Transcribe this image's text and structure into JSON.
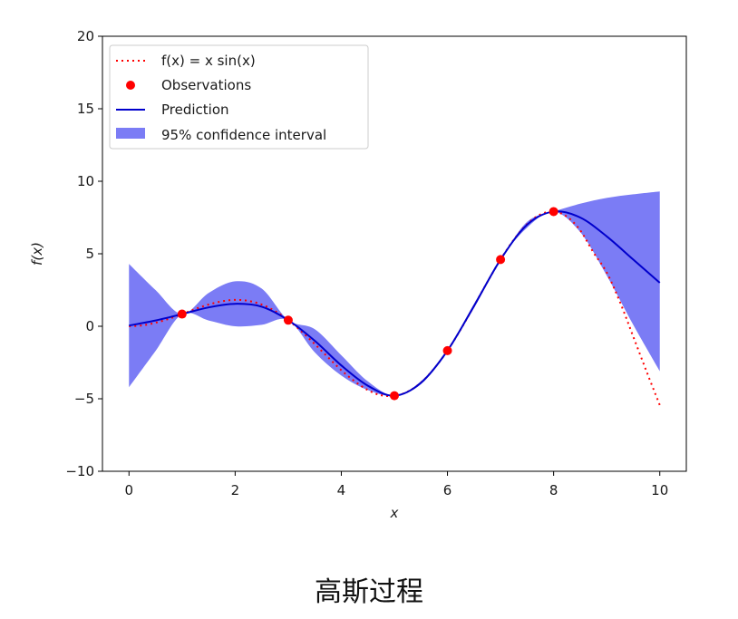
{
  "chart_data": {
    "type": "line",
    "xlabel": "x",
    "ylabel": "f(x)",
    "xlim": [
      -0.5,
      10.5
    ],
    "ylim": [
      -10,
      20
    ],
    "xticks": [
      0,
      2,
      4,
      6,
      8,
      10
    ],
    "yticks": [
      -10,
      -5,
      0,
      5,
      10,
      15,
      20
    ],
    "legend_position": "top-left",
    "series": [
      {
        "name": "f(x) = x sin(x)",
        "kind": "line",
        "style": "dotted",
        "color": "#ff0000",
        "x": [
          0,
          0.25,
          0.5,
          0.75,
          1,
          1.25,
          1.5,
          1.75,
          2,
          2.25,
          2.5,
          2.75,
          3,
          3.25,
          3.5,
          3.75,
          4,
          4.25,
          4.5,
          4.75,
          5,
          5.25,
          5.5,
          5.75,
          6,
          6.25,
          6.5,
          6.75,
          7,
          7.25,
          7.5,
          7.75,
          8,
          8.25,
          8.5,
          8.75,
          9,
          9.25,
          9.5,
          9.75,
          10
        ],
        "y": [
          0,
          0.06,
          0.24,
          0.51,
          0.84,
          1.19,
          1.5,
          1.72,
          1.82,
          1.75,
          1.5,
          1.05,
          0.42,
          -0.35,
          -1.23,
          -2.14,
          -3.03,
          -3.79,
          -4.4,
          -4.76,
          -4.79,
          -4.51,
          -3.88,
          -2.91,
          -1.68,
          -0.21,
          1.4,
          3.04,
          4.6,
          5.97,
          7.04,
          7.71,
          7.91,
          7.56,
          6.62,
          5.09,
          3.71,
          1.67,
          -0.71,
          -3.11,
          -5.44
        ]
      },
      {
        "name": "Observations",
        "kind": "scatter",
        "color": "#ff0000",
        "x": [
          1,
          3,
          5,
          6,
          7,
          8
        ],
        "y": [
          0.84,
          0.42,
          -4.79,
          -1.68,
          4.6,
          7.91
        ]
      },
      {
        "name": "Prediction",
        "kind": "line",
        "style": "solid",
        "color": "#0000cc",
        "x": [
          0,
          0.5,
          1,
          1.5,
          2,
          2.5,
          3,
          3.5,
          4,
          4.5,
          5,
          5.5,
          6,
          6.5,
          7,
          7.5,
          8,
          8.5,
          9,
          9.5,
          10
        ],
        "y": [
          0.05,
          0.4,
          0.84,
          1.3,
          1.55,
          1.35,
          0.42,
          -1.0,
          -2.7,
          -4.1,
          -4.79,
          -3.9,
          -1.68,
          1.4,
          4.6,
          7.0,
          7.91,
          7.5,
          6.2,
          4.6,
          3.0
        ]
      },
      {
        "name": "95% confidence interval",
        "kind": "band",
        "color": "#7b7cf5",
        "x": [
          0,
          0.5,
          1,
          1.5,
          2,
          2.5,
          3,
          3.5,
          4,
          4.5,
          5,
          5.5,
          6,
          6.5,
          7,
          7.5,
          8,
          8.5,
          9,
          9.5,
          10
        ],
        "upper": [
          4.3,
          2.5,
          0.84,
          2.3,
          3.1,
          2.6,
          0.42,
          -0.2,
          -2.0,
          -3.8,
          -4.79,
          -3.8,
          -1.68,
          1.55,
          4.6,
          7.2,
          7.91,
          8.45,
          8.85,
          9.1,
          9.3
        ],
        "lower": [
          -4.2,
          -1.7,
          0.84,
          0.4,
          0.0,
          0.1,
          0.42,
          -1.8,
          -3.4,
          -4.4,
          -4.79,
          -4.0,
          -1.68,
          1.25,
          4.6,
          6.8,
          7.91,
          6.5,
          3.5,
          0.1,
          -3.1
        ]
      }
    ]
  },
  "legend": {
    "items": [
      {
        "label": "f(x) = x sin(x)",
        "marker": "dotted-line"
      },
      {
        "label": "Observations",
        "marker": "dot"
      },
      {
        "label": "Prediction",
        "marker": "solid-line"
      },
      {
        "label": "95% confidence interval",
        "marker": "patch"
      }
    ]
  },
  "caption": "高斯过程"
}
